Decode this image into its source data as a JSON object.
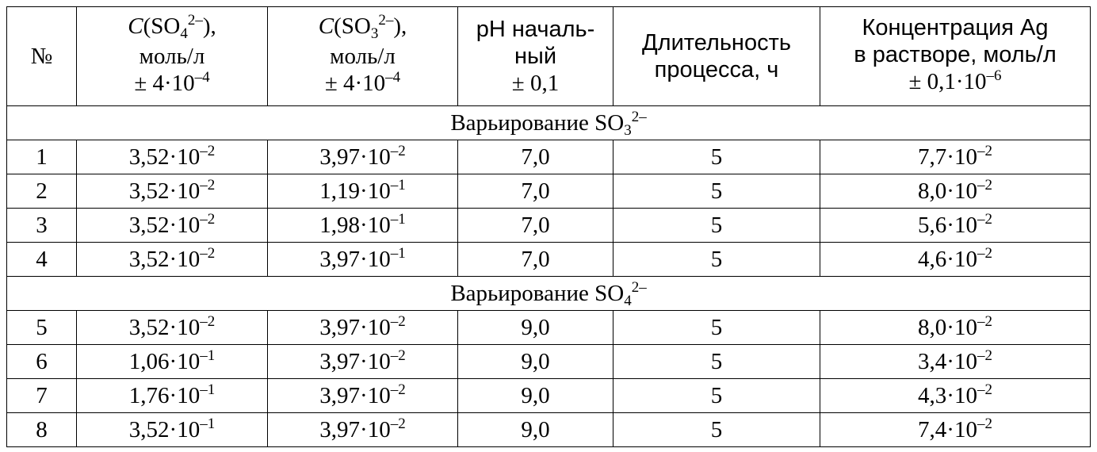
{
  "table": {
    "headers": {
      "num": "№",
      "c_so4": {
        "symbol": "C",
        "ion": "SO",
        "ion_sub": "4",
        "ion_sup": "2–",
        "close": "),",
        "unit": "моль/л",
        "err_pre": "± 4·10",
        "err_exp": "–4"
      },
      "c_so3": {
        "symbol": "C",
        "ion": "SO",
        "ion_sub": "3",
        "ion_sup": "2–",
        "close": "),",
        "unit": "моль/л",
        "err_pre": "± 4·10",
        "err_exp": "–4"
      },
      "ph": {
        "l1": "pH началь-",
        "l2": "ный",
        "l3": "± 0,1"
      },
      "duration": {
        "l1": "Длительность",
        "l2": "процесса, ч"
      },
      "ag": {
        "l1": "Концентрация Ag",
        "l2": "в растворе, моль/л",
        "err_pre": "± 0,1·10",
        "err_exp": "–6"
      }
    },
    "groups": [
      {
        "label": "Варьирование SO",
        "label_sub": "3",
        "label_sup": "2–",
        "rows": [
          {
            "n": "1",
            "so4_m": "3,52·10",
            "so4_e": "–2",
            "so3_m": "3,97·10",
            "so3_e": "–2",
            "ph": "7,0",
            "t": "5",
            "ag_m": "7,7·10",
            "ag_e": "–2"
          },
          {
            "n": "2",
            "so4_m": "3,52·10",
            "so4_e": "–2",
            "so3_m": "1,19·10",
            "so3_e": "–1",
            "ph": "7,0",
            "t": "5",
            "ag_m": "8,0·10",
            "ag_e": "–2"
          },
          {
            "n": "3",
            "so4_m": "3,52·10",
            "so4_e": "–2",
            "so3_m": "1,98·10",
            "so3_e": "–1",
            "ph": "7,0",
            "t": "5",
            "ag_m": "5,6·10",
            "ag_e": "–2"
          },
          {
            "n": "4",
            "so4_m": "3,52·10",
            "so4_e": "–2",
            "so3_m": "3,97·10",
            "so3_e": "–1",
            "ph": "7,0",
            "t": "5",
            "ag_m": "4,6·10",
            "ag_e": "–2"
          }
        ]
      },
      {
        "label": "Варьирование SO",
        "label_sub": "4",
        "label_sup": "2–",
        "rows": [
          {
            "n": "5",
            "so4_m": "3,52·10",
            "so4_e": "–2",
            "so3_m": "3,97·10",
            "so3_e": "–2",
            "ph": "9,0",
            "t": "5",
            "ag_m": "8,0·10",
            "ag_e": "–2"
          },
          {
            "n": "6",
            "so4_m": "1,06·10",
            "so4_e": "–1",
            "so3_m": "3,97·10",
            "so3_e": "–2",
            "ph": "9,0",
            "t": "5",
            "ag_m": "3,4·10",
            "ag_e": "–2"
          },
          {
            "n": "7",
            "so4_m": "1,76·10",
            "so4_e": "–1",
            "so3_m": "3,97·10",
            "so3_e": "–2",
            "ph": "9,0",
            "t": "5",
            "ag_m": "4,3·10",
            "ag_e": "–2"
          },
          {
            "n": "8",
            "so4_m": "3,52·10",
            "so4_e": "–1",
            "so3_m": "3,97·10",
            "so3_e": "–2",
            "ph": "9,0",
            "t": "5",
            "ag_m": "7,4·10",
            "ag_e": "–2"
          }
        ]
      }
    ]
  }
}
